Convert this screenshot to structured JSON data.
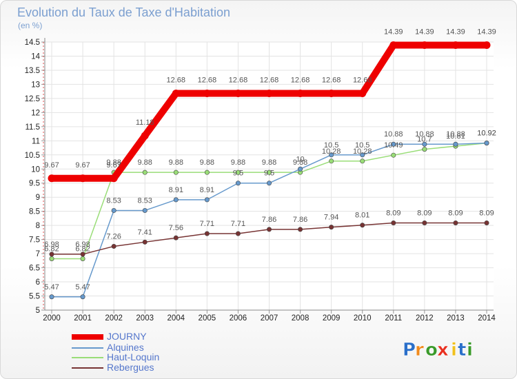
{
  "chart_data": {
    "type": "line",
    "title": "Evolution du Taux de Taxe d'Habitation",
    "subtitle": "(en %)",
    "x": [
      "2000",
      "2001",
      "2002",
      "2003",
      "2004",
      "2005",
      "2006",
      "2007",
      "2008",
      "2009",
      "2010",
      "2011",
      "2012",
      "2013",
      "2014"
    ],
    "ylim": [
      5,
      14.5
    ],
    "yticks": [
      5,
      5.5,
      6,
      6.5,
      7,
      7.5,
      8,
      8.5,
      9,
      9.5,
      10,
      10.5,
      11,
      11.5,
      12,
      12.5,
      13,
      13.5,
      14,
      14.5
    ],
    "grid": true,
    "legend_position": "bottom-left",
    "series": [
      {
        "name": "JOURNY",
        "color": "#ee0000",
        "values": [
          9.67,
          9.67,
          9.67,
          11.18,
          12.68,
          12.68,
          12.68,
          12.68,
          12.68,
          12.68,
          12.68,
          14.39,
          14.39,
          14.39,
          14.39
        ],
        "labels": [
          "9.67",
          "9.67",
          "9.67",
          "11.18",
          "12.68",
          "12.68",
          "12.68",
          "12.68",
          "12.68",
          "12.68",
          "12.68",
          "14.39",
          "14.39",
          "14.39",
          "14.39"
        ]
      },
      {
        "name": "Alquines",
        "color": "#6699cc",
        "values": [
          5.47,
          5.47,
          8.53,
          8.53,
          8.91,
          8.91,
          9.5,
          9.5,
          10,
          10.5,
          10.5,
          10.88,
          10.88,
          10.88,
          10.92
        ],
        "labels": [
          "5.47",
          "5.47",
          "8.53",
          "8.53",
          "8.91",
          "8.91",
          "9.5",
          "9.5",
          "10",
          "10.5",
          "10.5",
          "10.88",
          "10.88",
          "10.88",
          "10.92"
        ]
      },
      {
        "name": "Haut-Loquin",
        "color": "#99dd77",
        "values": [
          6.82,
          6.82,
          9.88,
          9.88,
          9.88,
          9.88,
          9.88,
          9.88,
          9.88,
          10.28,
          10.28,
          10.49,
          10.7,
          10.81,
          10.92
        ],
        "labels": [
          "6.82",
          "6.82",
          "9.88",
          "9.88",
          "9.88",
          "9.88",
          "9.88",
          "9.88",
          "9.88",
          "10.28",
          "10.28",
          "10.49",
          "10.7",
          "10.81",
          "10.92"
        ]
      },
      {
        "name": "Rebergues",
        "color": "#773333",
        "values": [
          6.98,
          6.98,
          7.26,
          7.41,
          7.56,
          7.71,
          7.71,
          7.86,
          7.86,
          7.94,
          8.01,
          8.09,
          8.09,
          8.09,
          8.09
        ],
        "labels": [
          "6.98",
          "6.98",
          "7.26",
          "7.41",
          "7.56",
          "7.71",
          "7.71",
          "7.86",
          "7.86",
          "7.94",
          "8.01",
          "8.09",
          "8.09",
          "8.09",
          "8.09"
        ]
      }
    ]
  },
  "brand": {
    "letters": [
      "P",
      "r",
      "o",
      "x",
      "i",
      "t",
      "i"
    ],
    "colors": [
      "#2a6fc9",
      "#f08a1c",
      "#3a9a2a",
      "#e83020",
      "#f0c01c",
      "#2a6fc9",
      "#3a9a2a"
    ]
  }
}
